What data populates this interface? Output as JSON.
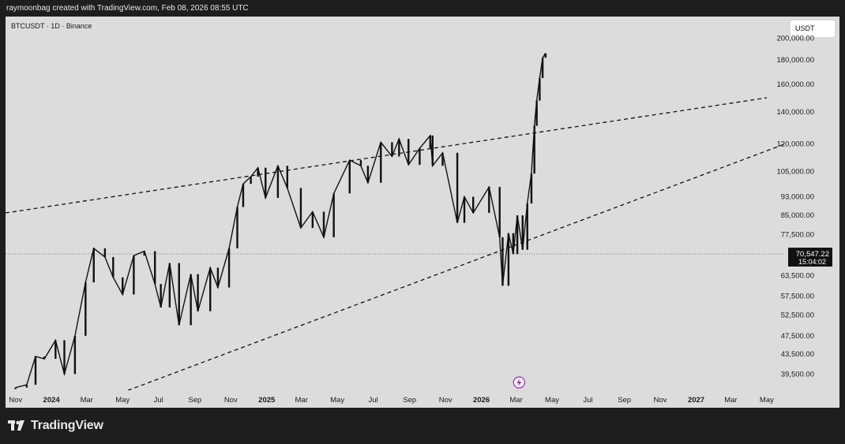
{
  "header": {
    "caption": "raymoonbag created with TradingView.com, Feb 08, 2026 08:55 UTC"
  },
  "symbol": {
    "label": "BTCUSDT · 1D · Binance"
  },
  "currency": "USDT",
  "footer": {
    "brand": "TradingView"
  },
  "colors": {
    "candle": "#111111",
    "background": "#dcdcdc",
    "page": "#1e1e1e",
    "price_label": "#111111",
    "event_icon": "#9b27b0"
  },
  "chart_data": {
    "type": "line",
    "title": "",
    "log_scale": true,
    "grid": false,
    "ylim": [
      36500,
      205000
    ],
    "y_ticks": [
      "200,000.00",
      "180,000.00",
      "160,000.00",
      "140,000.00",
      "120,000.00",
      "105,000.00",
      "93,000.00",
      "85,000.00",
      "77,500.00",
      "70,547.22",
      "63,500.00",
      "57,500.00",
      "52,500.00",
      "47,500.00",
      "43,500.00",
      "39,500.00"
    ],
    "x_ticks": [
      "Nov",
      "2024",
      "Mar",
      "May",
      "Jul",
      "Sep",
      "Nov",
      "2025",
      "Mar",
      "May",
      "Jul",
      "Sep",
      "Nov",
      "2026",
      "Mar",
      "May",
      "Jul",
      "Sep",
      "Nov",
      "2027",
      "Mar",
      "May"
    ],
    "x_start": "2023-10-15",
    "x_end": "2027-06-01",
    "current_price": {
      "value": 70547.22,
      "label": "70,547.22",
      "countdown": "15:04:02"
    },
    "series": [
      {
        "type": "candles",
        "points": [
          [
            "2023-11-01",
            37000
          ],
          [
            "2023-11-20",
            37500
          ],
          [
            "2023-12-05",
            43000
          ],
          [
            "2023-12-20",
            42500
          ],
          [
            "2024-01-08",
            46500
          ],
          [
            "2024-01-23",
            39500
          ],
          [
            "2024-02-10",
            47500
          ],
          [
            "2024-02-28",
            61500
          ],
          [
            "2024-03-13",
            72500
          ],
          [
            "2024-04-01",
            69500
          ],
          [
            "2024-04-15",
            63000
          ],
          [
            "2024-05-01",
            58000
          ],
          [
            "2024-05-20",
            70000
          ],
          [
            "2024-06-07",
            71500
          ],
          [
            "2024-06-25",
            61000
          ],
          [
            "2024-07-05",
            54500
          ],
          [
            "2024-07-20",
            67500
          ],
          [
            "2024-08-05",
            50000
          ],
          [
            "2024-08-25",
            64000
          ],
          [
            "2024-09-06",
            53500
          ],
          [
            "2024-09-27",
            66000
          ],
          [
            "2024-10-10",
            60000
          ],
          [
            "2024-10-29",
            72500
          ],
          [
            "2024-11-12",
            88500
          ],
          [
            "2024-11-22",
            99000
          ],
          [
            "2024-12-05",
            102500
          ],
          [
            "2024-12-17",
            107000
          ],
          [
            "2024-12-30",
            92500
          ],
          [
            "2025-01-20",
            108000
          ],
          [
            "2025-02-05",
            97000
          ],
          [
            "2025-02-28",
            80000
          ],
          [
            "2025-03-20",
            86500
          ],
          [
            "2025-04-08",
            76500
          ],
          [
            "2025-04-25",
            94500
          ],
          [
            "2025-05-22",
            111000
          ],
          [
            "2025-06-10",
            108000
          ],
          [
            "2025-06-22",
            99500
          ],
          [
            "2025-07-14",
            121000
          ],
          [
            "2025-08-02",
            113000
          ],
          [
            "2025-08-14",
            123000
          ],
          [
            "2025-08-30",
            108500
          ],
          [
            "2025-09-18",
            117500
          ],
          [
            "2025-10-06",
            125000
          ],
          [
            "2025-10-10",
            108000
          ],
          [
            "2025-10-27",
            115000
          ],
          [
            "2025-11-21",
            82000
          ],
          [
            "2025-12-03",
            93000
          ],
          [
            "2025-12-18",
            86000
          ],
          [
            "2026-01-14",
            97500
          ],
          [
            "2026-02-01",
            76500
          ],
          [
            "2026-02-06",
            60500
          ],
          [
            "2026-02-16",
            78000
          ],
          [
            "2026-02-24",
            70500
          ],
          [
            "2026-03-03",
            85000
          ],
          [
            "2026-03-12",
            72000
          ],
          [
            "2026-03-20",
            90000
          ],
          [
            "2026-03-27",
            104000
          ],
          [
            "2026-04-01",
            131000
          ],
          [
            "2026-04-05",
            148000
          ],
          [
            "2026-04-10",
            165000
          ],
          [
            "2026-04-15",
            182000
          ],
          [
            "2026-04-20",
            186000
          ]
        ]
      },
      {
        "type": "trendline",
        "dashed": true,
        "points": [
          [
            "2023-10-15",
            86000
          ],
          [
            "2027-05-01",
            150000
          ]
        ]
      },
      {
        "type": "trendline",
        "dashed": true,
        "points": [
          [
            "2024-05-10",
            36500
          ],
          [
            "2027-06-01",
            120000
          ]
        ]
      }
    ]
  }
}
